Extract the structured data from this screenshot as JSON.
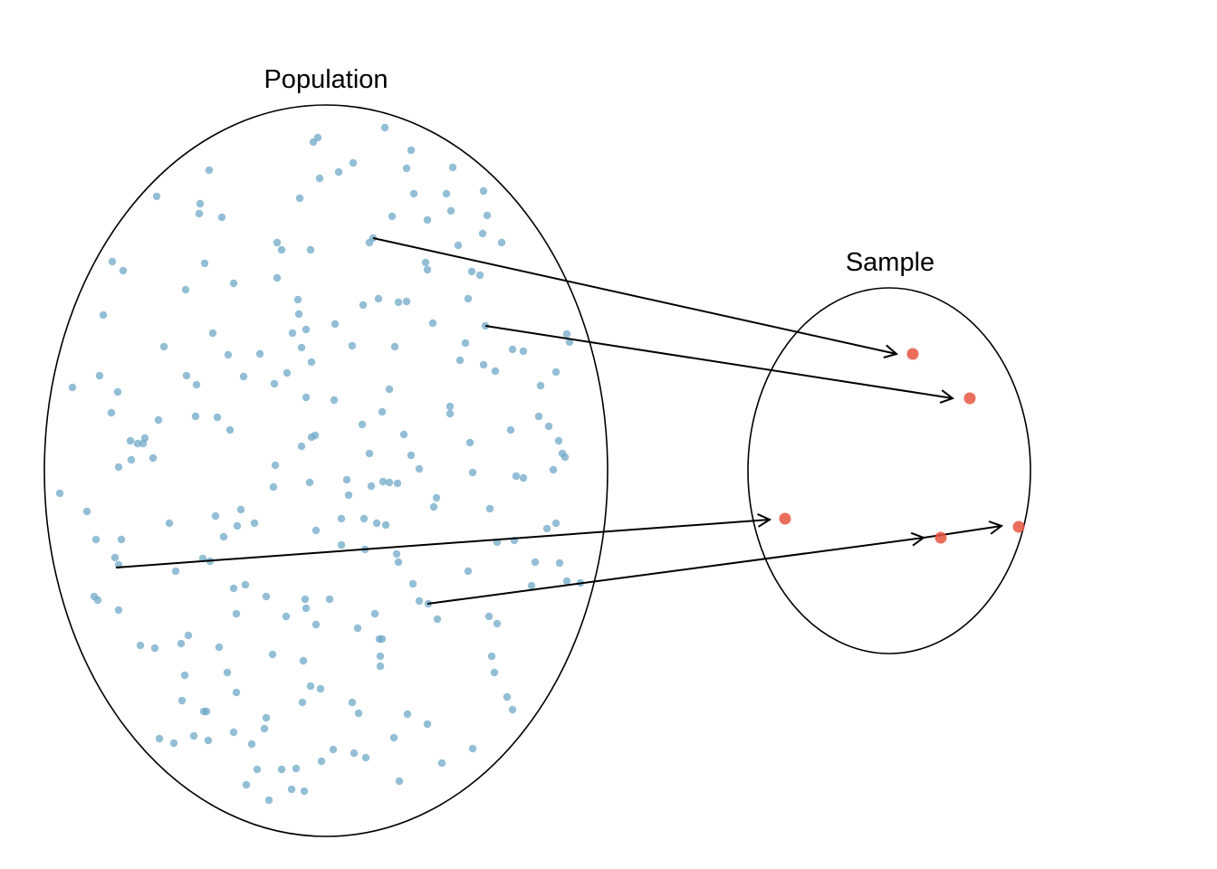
{
  "labels": {
    "population": "Population",
    "sample": "Sample"
  },
  "colors": {
    "population_dot": "#6fa8c8",
    "sample_dot": "#e8553f",
    "outline": "#000000",
    "arrow": "#000000"
  },
  "population_count": 256,
  "sample_count": 5
}
